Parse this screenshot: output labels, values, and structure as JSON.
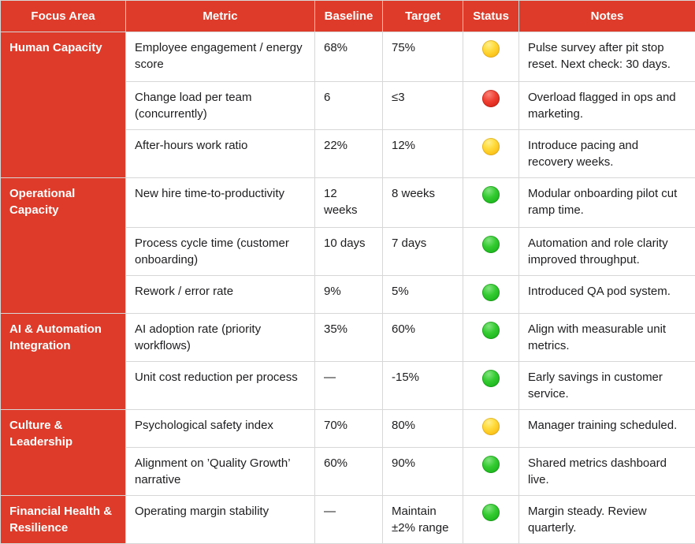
{
  "colors": {
    "header_red": "#df3b2a",
    "status_yellow": "#fcc71d",
    "status_red": "#dd2a1d",
    "status_green": "#1fb71f"
  },
  "table": {
    "columns": [
      "Focus Area",
      "Metric",
      "Baseline",
      "Target",
      "Status",
      "Notes"
    ],
    "groups": [
      {
        "focus": "Human Capacity",
        "rows": [
          {
            "metric": "Employee engagement / energy score",
            "baseline": "68%",
            "target": "75%",
            "status": "yellow",
            "notes": "Pulse survey after pit stop reset. Next check: 30 days."
          },
          {
            "metric": "Change load per team (concurrently)",
            "baseline": "6",
            "target": "≤3",
            "status": "red",
            "notes": "Overload flagged in ops and marketing."
          },
          {
            "metric": "After-hours work ratio",
            "baseline": "22%",
            "target": "12%",
            "status": "yellow",
            "notes": "Introduce pacing and recovery weeks."
          }
        ]
      },
      {
        "focus": "Operational Capacity",
        "rows": [
          {
            "metric": "New hire time-to-productivity",
            "baseline": "12 weeks",
            "target": "8 weeks",
            "status": "green",
            "notes": "Modular onboarding pilot cut ramp time."
          },
          {
            "metric": "Process cycle time (customer onboarding)",
            "baseline": "10 days",
            "target": "7 days",
            "status": "green",
            "notes": "Automation and role clarity improved throughput."
          },
          {
            "metric": "Rework / error rate",
            "baseline": "9%",
            "target": "5%",
            "status": "green",
            "notes": "Introduced QA pod system."
          }
        ]
      },
      {
        "focus": "AI & Automation Integration",
        "rows": [
          {
            "metric": "AI adoption rate (priority workflows)",
            "baseline": "35%",
            "target": "60%",
            "status": "green",
            "notes": "Align with measurable unit metrics."
          },
          {
            "metric": "Unit cost reduction per process",
            "baseline": "—",
            "target": "-15%",
            "status": "green",
            "notes": "Early savings in customer service."
          }
        ]
      },
      {
        "focus": "Culture & Leadership",
        "rows": [
          {
            "metric": "Psychological safety index",
            "baseline": "70%",
            "target": "80%",
            "status": "yellow",
            "notes": "Manager training scheduled."
          },
          {
            "metric": "Alignment on ’Quality Growth’ narrative",
            "baseline": "60%",
            "target": "90%",
            "status": "green",
            "notes": "Shared metrics dashboard live."
          }
        ]
      },
      {
        "focus": "Financial Health & Resilience",
        "rows": [
          {
            "metric": "Operating margin stability",
            "baseline": "—",
            "target": "Maintain ±2% range",
            "status": "green",
            "notes": "Margin steady. Review quarterly."
          }
        ]
      }
    ]
  }
}
